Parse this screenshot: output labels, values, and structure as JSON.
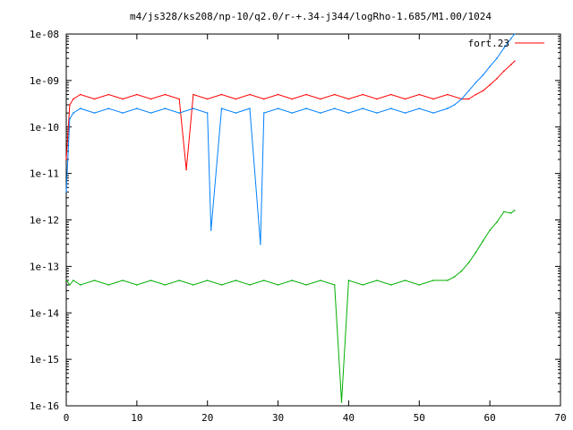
{
  "chart_data": {
    "type": "line",
    "title": "m4/js328/ks208/np-10/q2.0/r-+.34-j344/logRho-1.685/M1.00/1024",
    "xlabel": "",
    "ylabel": "",
    "xlim": [
      0,
      70
    ],
    "ylim": [
      1e-16,
      1e-08
    ],
    "yscale": "log",
    "grid": false,
    "legend_position": "top-right",
    "x_ticks": [
      0,
      10,
      20,
      30,
      40,
      50,
      60,
      70
    ],
    "x_tick_labels": [
      "0",
      "10",
      "20",
      "30",
      "40",
      "50",
      "60",
      "70"
    ],
    "y_ticks": [
      1e-16,
      1e-15,
      1e-14,
      1e-13,
      1e-12,
      1e-11,
      1e-10,
      1e-09,
      1e-08
    ],
    "y_tick_labels": [
      "1e-16",
      "1e-15",
      "1e-14",
      "1e-13",
      "1e-12",
      "1e-11",
      "1e-10",
      "1e-09",
      "1e-08"
    ],
    "series": [
      {
        "name": "fort.23",
        "color": "#ff0000",
        "x": [
          0,
          0.5,
          1,
          2,
          4,
          6,
          8,
          10,
          12,
          14,
          16,
          17,
          18,
          20,
          22,
          24,
          26,
          28,
          30,
          32,
          34,
          36,
          38,
          40,
          42,
          44,
          46,
          48,
          50,
          52,
          54,
          56,
          57,
          58,
          59,
          60,
          61,
          62,
          63,
          63.5
        ],
        "y": [
          2e-11,
          3e-10,
          4e-10,
          5e-10,
          4e-10,
          5e-10,
          4e-10,
          5e-10,
          4e-10,
          5e-10,
          4e-10,
          1.2e-11,
          5e-10,
          4e-10,
          5e-10,
          4e-10,
          5e-10,
          4e-10,
          5e-10,
          4e-10,
          5e-10,
          4e-10,
          5e-10,
          4e-10,
          5e-10,
          4e-10,
          5e-10,
          4e-10,
          5e-10,
          4e-10,
          5e-10,
          4e-10,
          4e-10,
          5e-10,
          6e-10,
          8e-10,
          1.1e-09,
          1.6e-09,
          2.2e-09,
          2.6e-09
        ]
      },
      {
        "name": "",
        "color": "#0080ff",
        "x": [
          0,
          0.5,
          1,
          2,
          4,
          6,
          8,
          10,
          12,
          14,
          16,
          18,
          20,
          20.5,
          22,
          24,
          26,
          27.5,
          28,
          30,
          32,
          34,
          36,
          38,
          40,
          42,
          44,
          46,
          48,
          50,
          52,
          54,
          55,
          56,
          57,
          58,
          59,
          60,
          61,
          62,
          63,
          63.5
        ],
        "y": [
          4e-12,
          1.5e-10,
          2e-10,
          2.5e-10,
          2e-10,
          2.5e-10,
          2e-10,
          2.5e-10,
          2e-10,
          2.5e-10,
          2e-10,
          2.5e-10,
          2e-10,
          6e-13,
          2.5e-10,
          2e-10,
          2.5e-10,
          3e-13,
          2e-10,
          2.5e-10,
          2e-10,
          2.5e-10,
          2e-10,
          2.5e-10,
          2e-10,
          2.5e-10,
          2e-10,
          2.5e-10,
          2e-10,
          2.5e-10,
          2e-10,
          2.5e-10,
          3e-10,
          4e-10,
          6e-10,
          9e-10,
          1.3e-09,
          2e-09,
          3e-09,
          5e-09,
          8e-09,
          1e-08
        ]
      },
      {
        "name": "",
        "color": "#00b000",
        "x": [
          0,
          0.5,
          1,
          2,
          4,
          6,
          8,
          10,
          12,
          14,
          16,
          18,
          20,
          22,
          24,
          26,
          28,
          30,
          32,
          34,
          36,
          38,
          39,
          40,
          42,
          44,
          46,
          48,
          50,
          52,
          54,
          55,
          56,
          57,
          58,
          59,
          60,
          61,
          62,
          63,
          63.5
        ],
        "y": [
          5e-14,
          4e-14,
          5e-14,
          4e-14,
          5e-14,
          4e-14,
          5e-14,
          4e-14,
          5e-14,
          4e-14,
          5e-14,
          4e-14,
          5e-14,
          4e-14,
          5e-14,
          4e-14,
          5e-14,
          4e-14,
          5e-14,
          4e-14,
          5e-14,
          4e-14,
          1.2e-16,
          5e-14,
          4e-14,
          5e-14,
          4e-14,
          5e-14,
          4e-14,
          5e-14,
          5e-14,
          6e-14,
          8e-14,
          1.2e-13,
          2e-13,
          3.5e-13,
          6e-13,
          9e-13,
          1.5e-12,
          1.4e-12,
          1.6e-12
        ]
      }
    ]
  }
}
